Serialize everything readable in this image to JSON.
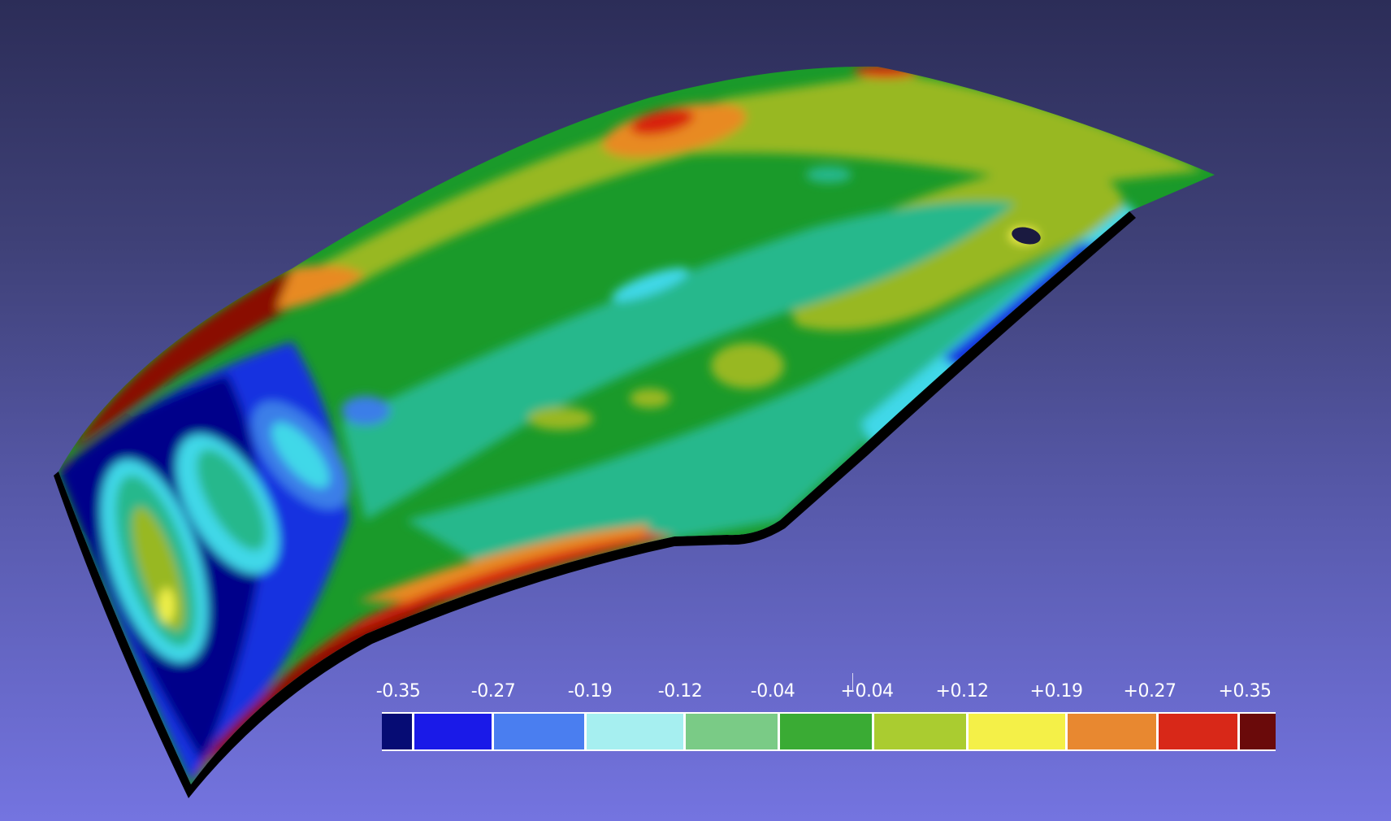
{
  "legend": {
    "ticks": [
      "-0.35",
      "-0.27",
      "-0.19",
      "-0.12",
      "-0.04",
      "+0.04",
      "+0.12",
      "+0.19",
      "+0.27",
      "+0.35"
    ],
    "colors": [
      "#060c74",
      "#1a1ae8",
      "#4a7ef0",
      "#a6eff0",
      "#7acb86",
      "#3aab34",
      "#aacc30",
      "#f4f048",
      "#e88830",
      "#d82818",
      "#6a0a0a"
    ]
  },
  "surface_colors": {
    "deep_blue": "#00058a",
    "blue": "#1230e0",
    "mid_blue": "#3a7ee8",
    "cyan": "#40d8e8",
    "teal": "#28b88c",
    "green": "#1a9a2a",
    "yellow_green": "#98b820",
    "yellow": "#f0f048",
    "orange": "#e88a20",
    "red": "#d82010",
    "dark_red": "#8a0806",
    "edge": "#000000"
  }
}
